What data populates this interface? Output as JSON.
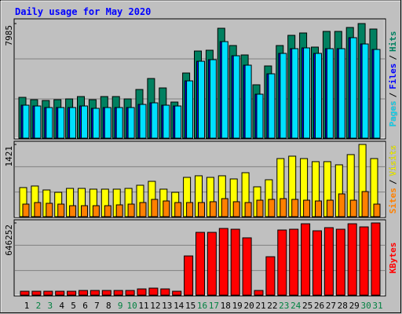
{
  "chart_data": [
    {
      "type": "bar",
      "title": "Daily usage for May 2020",
      "ylim": [
        0,
        7985
      ],
      "yticks": [
        7985
      ],
      "legend_separator": "/",
      "series": [
        {
          "name": "Hits",
          "color": "#008060",
          "values": [
            2844,
            2680,
            2625,
            2680,
            2735,
            2899,
            2680,
            2899,
            2899,
            2735,
            3391,
            4157,
            3500,
            2516,
            4540,
            6071,
            6126,
            7657,
            6454,
            5798,
            3719,
            5032,
            6454,
            7165,
            7329,
            6345,
            7438,
            7438,
            7712,
            7985,
            7603
          ]
        },
        {
          "name": "Files",
          "color": "#0000ff",
          "values": [
            2297,
            2242,
            2133,
            2133,
            2133,
            2242,
            2078,
            2133,
            2133,
            2133,
            2352,
            2461,
            2297,
            2242,
            3992,
            5359,
            5469,
            6727,
            5742,
            5086,
            3063,
            4484,
            5906,
            6235,
            6289,
            5906,
            6235,
            6235,
            7000,
            6563,
            6180
          ]
        },
        {
          "name": "Pages",
          "color": "#00e0ff",
          "values": [
            2297,
            2242,
            2133,
            2133,
            2133,
            2242,
            2078,
            2133,
            2133,
            2133,
            2352,
            2461,
            2297,
            2242,
            3992,
            5359,
            5469,
            6727,
            5742,
            5086,
            3063,
            4484,
            5906,
            6235,
            6289,
            5906,
            6235,
            6235,
            7000,
            6563,
            6180
          ]
        }
      ]
    },
    {
      "type": "bar",
      "ylim": [
        0,
        1421
      ],
      "yticks": [
        1421
      ],
      "legend_separator": "/",
      "series": [
        {
          "name": "Visits",
          "color": "#ffff00",
          "values": [
            572,
            603,
            525,
            479,
            556,
            556,
            541,
            541,
            541,
            556,
            618,
            695,
            541,
            479,
            773,
            804,
            773,
            804,
            742,
            865,
            587,
            726,
            1143,
            1190,
            1143,
            1082,
            1082,
            1020,
            1221,
            1421,
            1143
          ]
        },
        {
          "name": "Sites",
          "color": "#ff8000",
          "values": [
            247,
            278,
            263,
            247,
            216,
            216,
            216,
            216,
            232,
            247,
            278,
            340,
            309,
            278,
            278,
            278,
            294,
            355,
            294,
            278,
            324,
            340,
            355,
            340,
            324,
            309,
            324,
            448,
            324,
            494,
            247
          ]
        }
      ]
    },
    {
      "type": "bar",
      "ylim": [
        0,
        646252
      ],
      "yticks": [
        646252
      ],
      "categories": [
        "1",
        "2",
        "3",
        "4",
        "5",
        "6",
        "7",
        "8",
        "9",
        "10",
        "11",
        "12",
        "13",
        "14",
        "15",
        "16",
        "17",
        "18",
        "19",
        "20",
        "21",
        "22",
        "23",
        "24",
        "25",
        "26",
        "27",
        "28",
        "29",
        "30",
        "31"
      ],
      "label_colors": [
        "#000000",
        "#008040",
        "#008040",
        "#000000",
        "#000000",
        "#000000",
        "#000000",
        "#000000",
        "#008040",
        "#008040",
        "#000000",
        "#000000",
        "#000000",
        "#000000",
        "#000000",
        "#008040",
        "#008040",
        "#000000",
        "#000000",
        "#000000",
        "#000000",
        "#000000",
        "#008040",
        "#008040",
        "#000000",
        "#000000",
        "#000000",
        "#000000",
        "#000000",
        "#008040",
        "#008040"
      ],
      "series": [
        {
          "name": "KBytes",
          "color": "#ff0000",
          "values": [
            35000,
            35000,
            35000,
            35000,
            35000,
            42000,
            42000,
            42000,
            42000,
            42000,
            56000,
            63000,
            56000,
            35000,
            351000,
            562000,
            562000,
            597000,
            590000,
            513000,
            42000,
            344000,
            583000,
            590000,
            639000,
            576000,
            604000,
            590000,
            639000,
            611000,
            646252
          ]
        }
      ]
    }
  ]
}
